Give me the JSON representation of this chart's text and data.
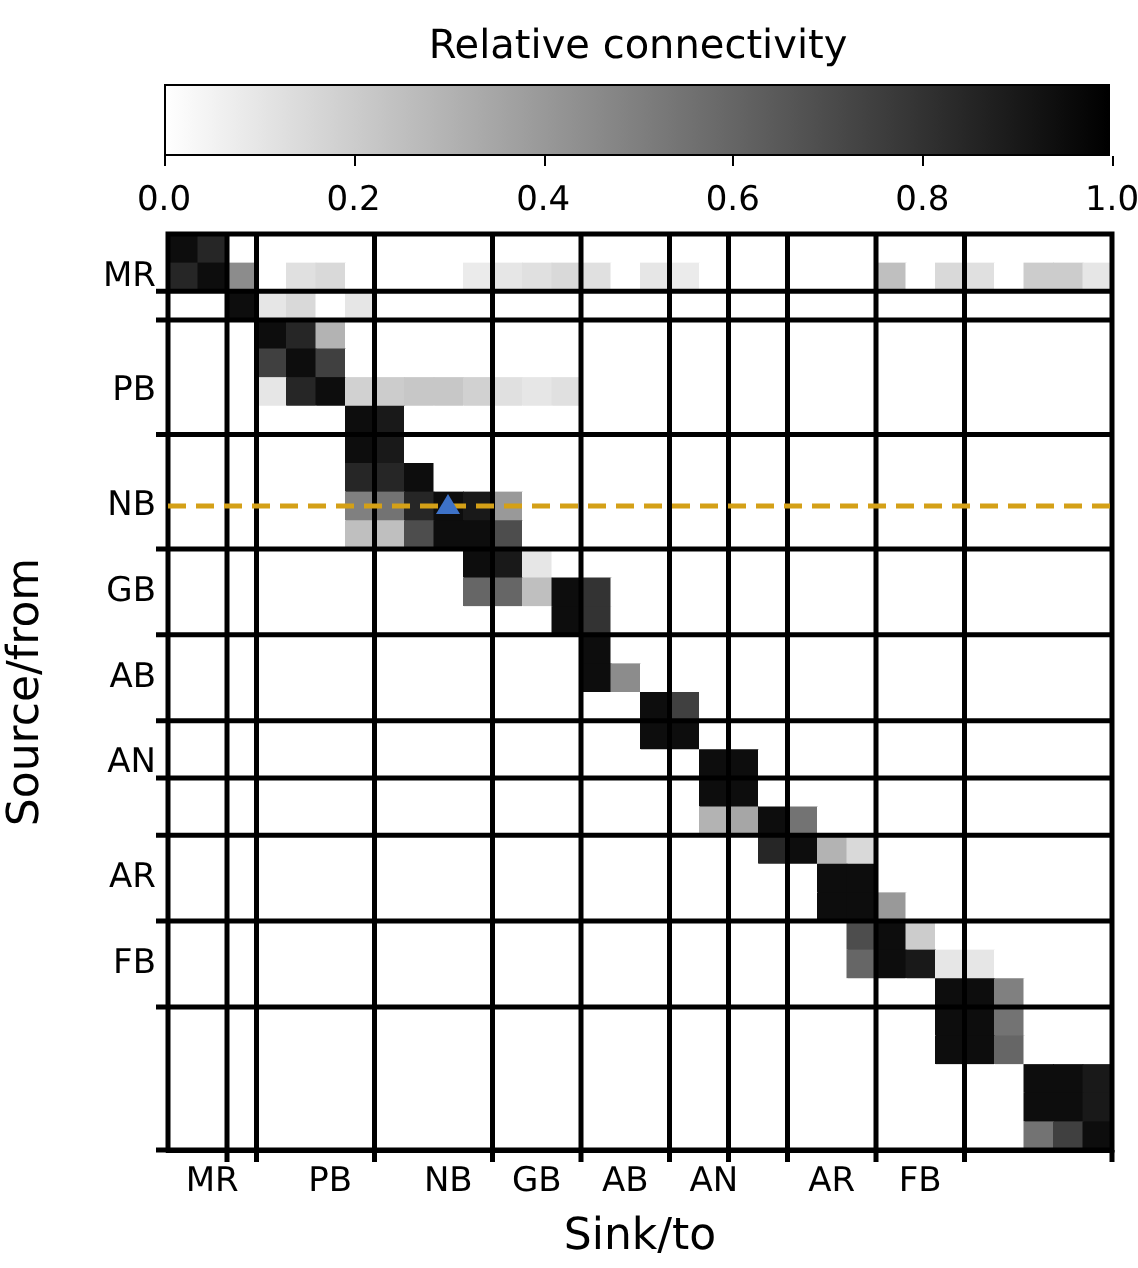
{
  "chart_data": {
    "type": "heatmap",
    "xlabel": "Sink/to",
    "ylabel": "Source/from",
    "clabel": "Relative connectivity",
    "categories": [
      null,
      "MR",
      null,
      null,
      null,
      "PB",
      null,
      null,
      null,
      "NB",
      null,
      null,
      "GB",
      null,
      null,
      "AB",
      null,
      null,
      "AN",
      null,
      null,
      null,
      "AR",
      null,
      null,
      "FB",
      null,
      null,
      null,
      null,
      null,
      null
    ],
    "y_categories": [
      null,
      "MR",
      null,
      null,
      null,
      "PB",
      null,
      null,
      null,
      "NB",
      null,
      null,
      "GB",
      null,
      null,
      "AB",
      null,
      null,
      "AN",
      null,
      null,
      null,
      "AR",
      null,
      null,
      "FB",
      null,
      null,
      null,
      null,
      null,
      null
    ],
    "ref_lines": [
      {
        "axis": "y",
        "value": "NB",
        "color": "#d4a017",
        "line_style": "dashed"
      }
    ],
    "clim": [
      0,
      1
    ],
    "cticks": [
      {
        "value": 0,
        "label": "0.0"
      },
      0.2,
      0.4,
      0.6,
      0.8,
      {
        "value": 1,
        "label": "1.0"
      }
    ],
    "cells": [
      [
        0.95,
        0.85,
        0,
        0,
        0,
        0,
        0,
        0,
        0,
        0,
        0,
        0,
        0,
        0,
        0,
        0,
        0,
        0,
        0,
        0,
        0,
        0,
        0,
        0,
        0,
        0,
        0,
        0,
        0,
        0,
        0,
        0
      ],
      [
        0.85,
        0.95,
        0.45,
        0,
        0.12,
        0.15,
        0,
        0,
        0,
        0,
        0.08,
        0.1,
        0.12,
        0.15,
        0.12,
        0,
        0.1,
        0.08,
        0,
        0,
        0,
        0,
        0,
        0,
        0.25,
        0,
        0.15,
        0.12,
        0,
        0.2,
        0.2,
        0.1
      ],
      [
        0,
        0,
        0.95,
        0.1,
        0.15,
        0,
        0.1,
        0,
        0,
        0,
        0,
        0,
        0,
        0,
        0,
        0,
        0,
        0,
        0,
        0,
        0,
        0,
        0,
        0,
        0,
        0,
        0,
        0,
        0,
        0,
        0,
        0
      ],
      [
        0,
        0,
        0,
        0.95,
        0.85,
        0.3,
        0,
        0,
        0,
        0,
        0,
        0,
        0,
        0,
        0,
        0,
        0,
        0,
        0,
        0,
        0,
        0,
        0,
        0,
        0,
        0,
        0,
        0,
        0,
        0,
        0,
        0
      ],
      [
        0,
        0,
        0,
        0.75,
        0.95,
        0.75,
        0,
        0,
        0,
        0,
        0,
        0,
        0,
        0,
        0,
        0,
        0,
        0,
        0,
        0,
        0,
        0,
        0,
        0,
        0,
        0,
        0,
        0,
        0,
        0,
        0,
        0
      ],
      [
        0,
        0,
        0,
        0.1,
        0.85,
        0.95,
        0.18,
        0.2,
        0.22,
        0.22,
        0.18,
        0.12,
        0.1,
        0.12,
        0,
        0,
        0,
        0,
        0,
        0,
        0,
        0,
        0,
        0,
        0,
        0,
        0,
        0,
        0,
        0,
        0,
        0
      ],
      [
        0,
        0,
        0,
        0,
        0,
        0,
        0.95,
        0.9,
        0,
        0,
        0,
        0,
        0,
        0,
        0,
        0,
        0,
        0,
        0,
        0,
        0,
        0,
        0,
        0,
        0,
        0,
        0,
        0,
        0,
        0,
        0,
        0
      ],
      [
        0,
        0,
        0,
        0,
        0,
        0,
        0.95,
        0.9,
        0,
        0,
        0,
        0,
        0,
        0,
        0,
        0,
        0,
        0,
        0,
        0,
        0,
        0,
        0,
        0,
        0,
        0,
        0,
        0,
        0,
        0,
        0,
        0
      ],
      [
        0,
        0,
        0,
        0,
        0,
        0,
        0.85,
        0.85,
        0.95,
        0,
        0,
        0,
        0,
        0,
        0,
        0,
        0,
        0,
        0,
        0,
        0,
        0,
        0,
        0,
        0,
        0,
        0,
        0,
        0,
        0,
        0,
        0
      ],
      [
        0,
        0,
        0,
        0,
        0,
        0,
        0.5,
        0.55,
        0.85,
        0.95,
        0.9,
        0.4,
        0,
        0,
        0,
        0,
        0,
        0,
        0,
        0,
        0,
        0,
        0,
        0,
        0,
        0,
        0,
        0,
        0,
        0,
        0,
        0
      ],
      [
        0,
        0,
        0,
        0,
        0,
        0,
        0.25,
        0.25,
        0.7,
        0.95,
        0.95,
        0.7,
        0,
        0,
        0,
        0,
        0,
        0,
        0,
        0,
        0,
        0,
        0,
        0,
        0,
        0,
        0,
        0,
        0,
        0,
        0,
        0
      ],
      [
        0,
        0,
        0,
        0,
        0,
        0,
        0,
        0,
        0,
        0,
        0.95,
        0.9,
        0.1,
        0,
        0,
        0,
        0,
        0,
        0,
        0,
        0,
        0,
        0,
        0,
        0,
        0,
        0,
        0,
        0,
        0,
        0,
        0
      ],
      [
        0,
        0,
        0,
        0,
        0,
        0,
        0,
        0,
        0,
        0,
        0.6,
        0.6,
        0.25,
        0.95,
        0.8,
        0,
        0,
        0,
        0,
        0,
        0,
        0,
        0,
        0,
        0,
        0,
        0,
        0,
        0,
        0,
        0,
        0
      ],
      [
        0,
        0,
        0,
        0,
        0,
        0,
        0,
        0,
        0,
        0,
        0,
        0,
        0,
        0.95,
        0.8,
        0,
        0,
        0,
        0,
        0,
        0,
        0,
        0,
        0,
        0,
        0,
        0,
        0,
        0,
        0,
        0,
        0
      ],
      [
        0,
        0,
        0,
        0,
        0,
        0,
        0,
        0,
        0,
        0,
        0,
        0,
        0,
        0,
        0.95,
        0,
        0,
        0,
        0,
        0,
        0,
        0,
        0,
        0,
        0,
        0,
        0,
        0,
        0,
        0,
        0,
        0
      ],
      [
        0,
        0,
        0,
        0,
        0,
        0,
        0,
        0,
        0,
        0,
        0,
        0,
        0,
        0,
        0.95,
        0.45,
        0,
        0,
        0,
        0,
        0,
        0,
        0,
        0,
        0,
        0,
        0,
        0,
        0,
        0,
        0,
        0
      ],
      [
        0,
        0,
        0,
        0,
        0,
        0,
        0,
        0,
        0,
        0,
        0,
        0,
        0,
        0,
        0,
        0,
        0.95,
        0.75,
        0,
        0,
        0,
        0,
        0,
        0,
        0,
        0,
        0,
        0,
        0,
        0,
        0,
        0
      ],
      [
        0,
        0,
        0,
        0,
        0,
        0,
        0,
        0,
        0,
        0,
        0,
        0,
        0,
        0,
        0,
        0,
        0.95,
        0.95,
        0,
        0,
        0,
        0,
        0,
        0,
        0,
        0,
        0,
        0,
        0,
        0,
        0,
        0
      ],
      [
        0,
        0,
        0,
        0,
        0,
        0,
        0,
        0,
        0,
        0,
        0,
        0,
        0,
        0,
        0,
        0,
        0,
        0,
        0.95,
        0.95,
        0,
        0,
        0,
        0,
        0,
        0,
        0,
        0,
        0,
        0,
        0,
        0
      ],
      [
        0,
        0,
        0,
        0,
        0,
        0,
        0,
        0,
        0,
        0,
        0,
        0,
        0,
        0,
        0,
        0,
        0,
        0,
        0.95,
        0.95,
        0,
        0,
        0,
        0,
        0,
        0,
        0,
        0,
        0,
        0,
        0,
        0
      ],
      [
        0,
        0,
        0,
        0,
        0,
        0,
        0,
        0,
        0,
        0,
        0,
        0,
        0,
        0,
        0,
        0,
        0,
        0,
        0.3,
        0.35,
        0.95,
        0.55,
        0,
        0,
        0,
        0,
        0,
        0,
        0,
        0,
        0,
        0
      ],
      [
        0,
        0,
        0,
        0,
        0,
        0,
        0,
        0,
        0,
        0,
        0,
        0,
        0,
        0,
        0,
        0,
        0,
        0,
        0,
        0,
        0.85,
        0.95,
        0.3,
        0.15,
        0,
        0,
        0,
        0,
        0,
        0,
        0,
        0
      ],
      [
        0,
        0,
        0,
        0,
        0,
        0,
        0,
        0,
        0,
        0,
        0,
        0,
        0,
        0,
        0,
        0,
        0,
        0,
        0,
        0,
        0,
        0,
        0.95,
        0.95,
        0,
        0,
        0,
        0,
        0,
        0,
        0,
        0
      ],
      [
        0,
        0,
        0,
        0,
        0,
        0,
        0,
        0,
        0,
        0,
        0,
        0,
        0,
        0,
        0,
        0,
        0,
        0,
        0,
        0,
        0,
        0,
        0.95,
        0.95,
        0.4,
        0,
        0,
        0,
        0,
        0,
        0,
        0
      ],
      [
        0,
        0,
        0,
        0,
        0,
        0,
        0,
        0,
        0,
        0,
        0,
        0,
        0,
        0,
        0,
        0,
        0,
        0,
        0,
        0,
        0,
        0,
        0,
        0.7,
        0.95,
        0.2,
        0,
        0,
        0,
        0,
        0,
        0
      ],
      [
        0,
        0,
        0,
        0,
        0,
        0,
        0,
        0,
        0,
        0,
        0,
        0,
        0,
        0,
        0,
        0,
        0,
        0,
        0,
        0,
        0,
        0,
        0,
        0.6,
        0.95,
        0.9,
        0.1,
        0.1,
        0,
        0,
        0,
        0
      ],
      [
        0,
        0,
        0,
        0,
        0,
        0,
        0,
        0,
        0,
        0,
        0,
        0,
        0,
        0,
        0,
        0,
        0,
        0,
        0,
        0,
        0,
        0,
        0,
        0,
        0,
        0,
        0.95,
        0.95,
        0.5,
        0,
        0,
        0
      ],
      [
        0,
        0,
        0,
        0,
        0,
        0,
        0,
        0,
        0,
        0,
        0,
        0,
        0,
        0,
        0,
        0,
        0,
        0,
        0,
        0,
        0,
        0,
        0,
        0,
        0,
        0,
        0.95,
        0.95,
        0.55,
        0,
        0,
        0
      ],
      [
        0,
        0,
        0,
        0,
        0,
        0,
        0,
        0,
        0,
        0,
        0,
        0,
        0,
        0,
        0,
        0,
        0,
        0,
        0,
        0,
        0,
        0,
        0,
        0,
        0,
        0,
        0.95,
        0.95,
        0.6,
        0,
        0,
        0
      ],
      [
        0,
        0,
        0,
        0,
        0,
        0,
        0,
        0,
        0,
        0,
        0,
        0,
        0,
        0,
        0,
        0,
        0,
        0,
        0,
        0,
        0,
        0,
        0,
        0,
        0,
        0,
        0,
        0,
        0,
        0.95,
        0.95,
        0.9
      ],
      [
        0,
        0,
        0,
        0,
        0,
        0,
        0,
        0,
        0,
        0,
        0,
        0,
        0,
        0,
        0,
        0,
        0,
        0,
        0,
        0,
        0,
        0,
        0,
        0,
        0,
        0,
        0,
        0,
        0,
        0.95,
        0.95,
        0.9
      ],
      [
        0,
        0,
        0,
        0,
        0,
        0,
        0,
        0,
        0,
        0,
        0,
        0,
        0,
        0,
        0,
        0,
        0,
        0,
        0,
        0,
        0,
        0,
        0,
        0,
        0,
        0,
        0,
        0,
        0,
        0.55,
        0.75,
        0.95
      ]
    ],
    "legend": false
  }
}
